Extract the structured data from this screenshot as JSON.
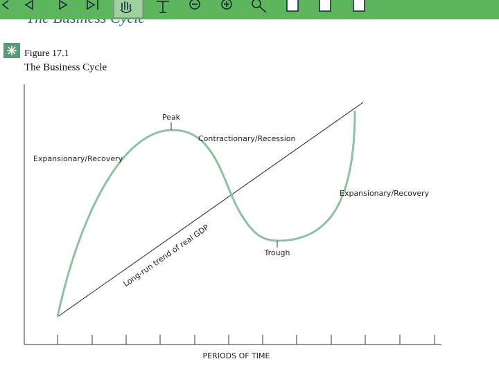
{
  "slide_title": "The Business Cycle",
  "figure": {
    "number": "Figure 17.1",
    "title": "The Business Cycle"
  },
  "labels": {
    "peak": "Peak",
    "contraction": "Contractionary/Recession",
    "expansion_left": "Expansionary/Recovery",
    "expansion_right": "Expansionary/Recovery",
    "trough": "Trough",
    "trend": "Long-run trend of real GDP"
  },
  "x_axis_label": "PERIODS OF TIME"
}
